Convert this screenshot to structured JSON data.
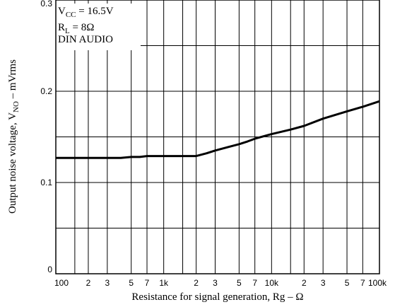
{
  "chart_data": {
    "type": "line",
    "xscale": "log",
    "xlim": [
      100,
      100000
    ],
    "ylim": [
      0,
      0.3
    ],
    "grid": true,
    "xlabel": "Resistance for signal generation, Rg  –  Ω",
    "ylabel": {
      "prefix": "Output noise voltage, V",
      "subscript": "NO",
      "suffix": "  –  mVrms"
    },
    "xticks": [
      {
        "value": 100,
        "label": "100"
      },
      {
        "value": 200,
        "label": "2"
      },
      {
        "value": 300,
        "label": "3"
      },
      {
        "value": 500,
        "label": "5"
      },
      {
        "value": 700,
        "label": "7"
      },
      {
        "value": 1000,
        "label": "1k"
      },
      {
        "value": 2000,
        "label": "2"
      },
      {
        "value": 3000,
        "label": "3"
      },
      {
        "value": 5000,
        "label": "5"
      },
      {
        "value": 7000,
        "label": "7"
      },
      {
        "value": 10000,
        "label": "10k"
      },
      {
        "value": 20000,
        "label": "2"
      },
      {
        "value": 30000,
        "label": "3"
      },
      {
        "value": 50000,
        "label": "5"
      },
      {
        "value": 70000,
        "label": "7"
      },
      {
        "value": 100000,
        "label": "100k"
      }
    ],
    "yticks": [
      {
        "value": 0,
        "label": "0"
      },
      {
        "value": 0.1,
        "label": "0.1"
      },
      {
        "value": 0.2,
        "label": "0.2"
      },
      {
        "value": 0.3,
        "label": "0.3"
      }
    ],
    "minor_y_grid": [
      0.05,
      0.15,
      0.25
    ],
    "minor_x_grid": [
      150,
      1500,
      15000
    ],
    "annotation": [
      {
        "main": "V",
        "sub": "CC",
        "rest": " = 16.5V"
      },
      {
        "main": "R",
        "sub": "L",
        "rest": " = 8Ω"
      },
      {
        "main": "DIN AUDIO",
        "sub": "",
        "rest": ""
      }
    ],
    "series": [
      {
        "x": [
          100,
          150,
          200,
          300,
          400,
          500,
          600,
          700,
          1000,
          1500,
          2000,
          2500,
          3000,
          4000,
          5000,
          6000,
          7000,
          10000,
          15000,
          20000,
          30000,
          50000,
          70000,
          100000
        ],
        "y": [
          0.127,
          0.127,
          0.127,
          0.127,
          0.127,
          0.128,
          0.128,
          0.129,
          0.129,
          0.129,
          0.129,
          0.132,
          0.135,
          0.139,
          0.142,
          0.145,
          0.148,
          0.153,
          0.158,
          0.162,
          0.17,
          0.178,
          0.183,
          0.189
        ]
      }
    ]
  }
}
